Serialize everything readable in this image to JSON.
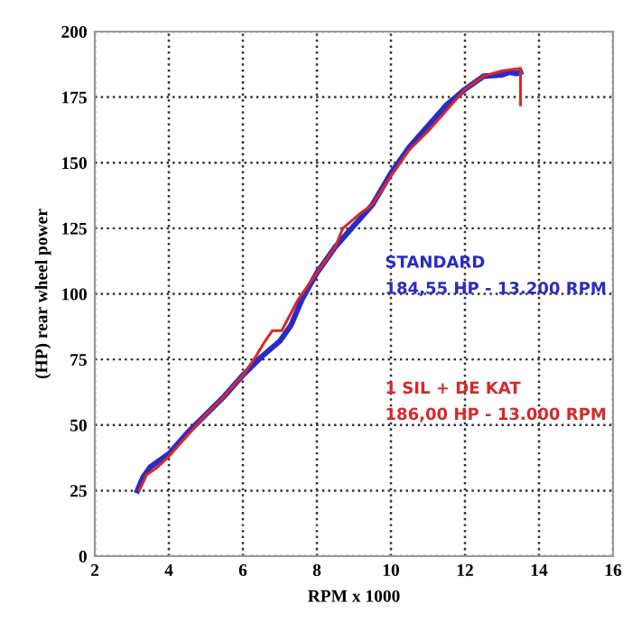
{
  "chart_data": {
    "type": "line",
    "xlabel": "RPM x 1000",
    "ylabel": "(HP) rear wheel power",
    "xlim": [
      2,
      16
    ],
    "xticks": [
      2,
      4,
      6,
      8,
      10,
      12,
      14,
      16
    ],
    "ylim": [
      0,
      200
    ],
    "yticks": [
      0,
      25,
      50,
      75,
      100,
      125,
      150,
      175,
      200
    ],
    "grid": true,
    "line_style": "solid",
    "marker": "none",
    "series": [
      {
        "name": "STANDARD",
        "color": "#2b2bc4",
        "x": [
          3.15,
          3.3,
          3.5,
          3.8,
          4,
          4.5,
          5,
          5.5,
          6,
          6.5,
          7,
          7.3,
          7.6,
          8,
          8.5,
          9,
          9.5,
          10,
          10.5,
          11,
          11.5,
          12,
          12.5,
          13,
          13.2,
          13.4,
          13.5
        ],
        "values": [
          25,
          30,
          34,
          37,
          39,
          47,
          54,
          61,
          69,
          76,
          82,
          88,
          98,
          108,
          118,
          126,
          134,
          146,
          156,
          164,
          172,
          178,
          183,
          183.5,
          184.5,
          184,
          184.5
        ]
      },
      {
        "name": "1 SIL + DE KAT",
        "color": "#d42a2a",
        "x": [
          3.2,
          3.4,
          3.7,
          4,
          4.5,
          5,
          5.5,
          6,
          6.3,
          6.6,
          6.8,
          7.05,
          7.5,
          8,
          8.5,
          8.7,
          9.2,
          9.5,
          10,
          10.5,
          11,
          11.5,
          12,
          12.5,
          13,
          13.5,
          13.5
        ],
        "values": [
          25,
          31,
          34,
          38,
          46,
          54,
          61,
          69,
          75,
          82,
          86,
          86,
          98,
          108,
          118,
          125,
          131,
          134,
          145,
          155,
          162,
          170,
          178,
          183,
          185,
          186,
          172
        ]
      }
    ],
    "annotations": [
      "184,55 HP - 13.200 RPM",
      "186,00 HP - 13.000 RPM"
    ]
  }
}
